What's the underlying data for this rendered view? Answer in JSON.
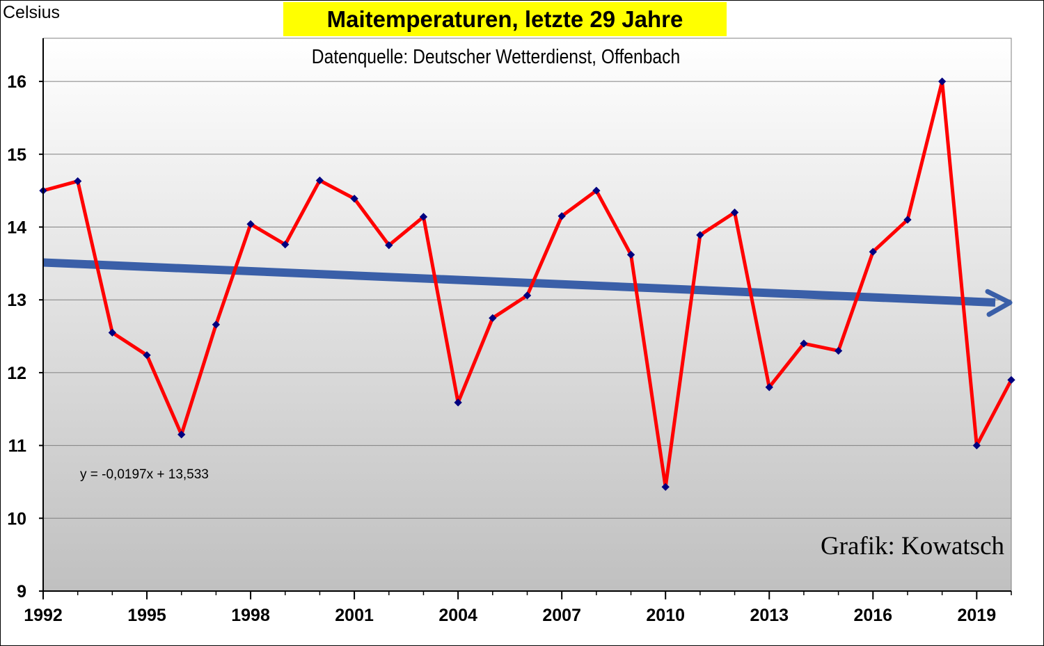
{
  "chart_data": {
    "type": "line",
    "title": "Maitemperaturen,  letzte 29 Jahre",
    "subtitle": "Datenquelle: Deutscher Wetterdienst, Offenbach",
    "ylabel": "Celsius",
    "xlabel": "",
    "ylim": [
      9,
      16.6
    ],
    "yticks": [
      9,
      10,
      11,
      12,
      13,
      14,
      15,
      16
    ],
    "xlim": [
      1992,
      2020
    ],
    "xticks": [
      1992,
      1995,
      1998,
      2001,
      2004,
      2007,
      2010,
      2013,
      2016,
      2019
    ],
    "grid": true,
    "x": [
      1992,
      1993,
      1994,
      1995,
      1996,
      1997,
      1998,
      1999,
      2000,
      2001,
      2002,
      2003,
      2004,
      2005,
      2006,
      2007,
      2008,
      2009,
      2010,
      2011,
      2012,
      2013,
      2014,
      2015,
      2016,
      2017,
      2018,
      2019,
      2020
    ],
    "series": [
      {
        "values": [
          14.5,
          14.63,
          12.55,
          12.24,
          11.15,
          12.66,
          14.04,
          13.76,
          14.64,
          14.39,
          13.75,
          14.14,
          11.59,
          12.75,
          13.06,
          14.15,
          14.5,
          13.62,
          10.43,
          13.89,
          14.2,
          11.8,
          12.4,
          12.3,
          13.66,
          14.1,
          16.0,
          11.0,
          11.9
        ],
        "color": "#ff0000",
        "marker_color": "#00007f"
      }
    ],
    "trendline": {
      "equation": "y = -0,0197x + 13,533",
      "slope": -0.0197,
      "intercept": 13.533,
      "color": "#3a5fa8"
    },
    "annotation": "Grafik: Kowatsch"
  }
}
